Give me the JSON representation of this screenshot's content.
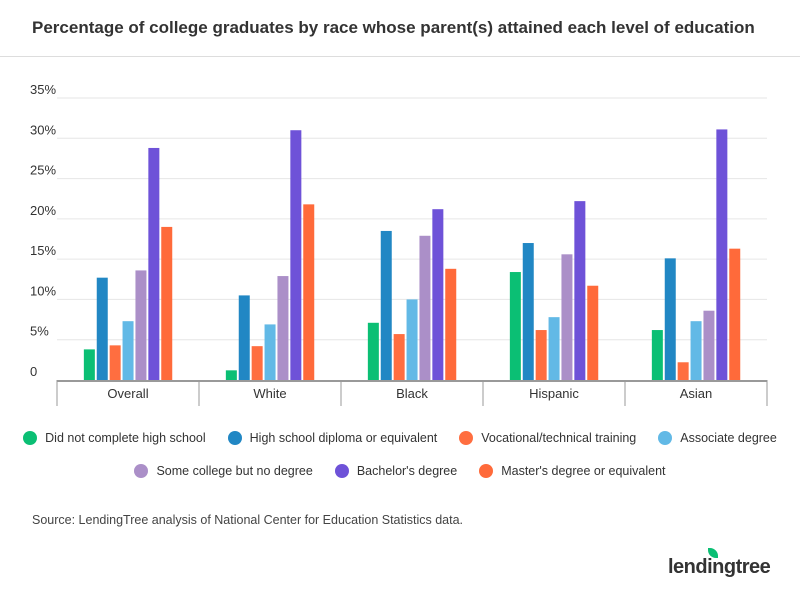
{
  "chart_data": {
    "type": "bar",
    "title": "Percentage of college graduates by race whose parent(s) attained each level of education",
    "categories": [
      "Overall",
      "White",
      "Black",
      "Hispanic",
      "Asian"
    ],
    "ylim": [
      0,
      35
    ],
    "yticks": [
      "0",
      "5%",
      "10%",
      "15%",
      "20%",
      "25%",
      "30%",
      "35%"
    ],
    "grid": true,
    "legend_placement": "bottom",
    "series": [
      {
        "name": "Did not complete high school",
        "color": "#0bbf74",
        "values": [
          3.8,
          1.2,
          7.1,
          13.4,
          6.2
        ]
      },
      {
        "name": "High school diploma or equivalent",
        "color": "#2187c4",
        "values": [
          12.7,
          10.5,
          18.5,
          17.0,
          15.1
        ]
      },
      {
        "name": "Vocational/technical training",
        "color": "#ff6e40",
        "values": [
          4.3,
          4.2,
          5.7,
          6.2,
          2.2
        ]
      },
      {
        "name": "Associate degree",
        "color": "#62b9e6",
        "values": [
          7.3,
          6.9,
          10.0,
          7.8,
          7.3
        ]
      },
      {
        "name": "Some college but no degree",
        "color": "#ab8fc8",
        "values": [
          13.6,
          12.9,
          17.9,
          15.6,
          8.6
        ]
      },
      {
        "name": "Bachelor's degree",
        "color": "#6e52d8",
        "values": [
          28.8,
          31.0,
          21.2,
          22.2,
          31.1
        ]
      },
      {
        "name": "Master's degree or equivalent",
        "color": "#ff6a3a",
        "values": [
          19.0,
          21.8,
          13.8,
          11.7,
          16.3
        ]
      }
    ]
  },
  "source": "Source: LendingTree analysis of National Center for Education Statistics data.",
  "logo": "lendingtree"
}
